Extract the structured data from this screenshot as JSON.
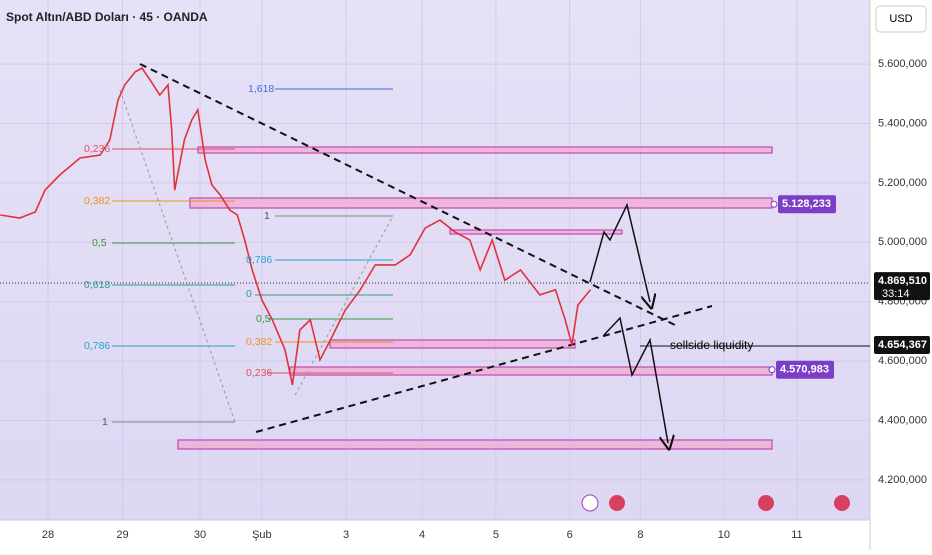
{
  "chart_data": {
    "type": "line",
    "title": "Spot Altın/ABD Doları · 45 · OANDA",
    "currency": "USD",
    "color": "#e0323c",
    "x": [
      -0.64,
      -0.38,
      -0.17,
      -0.04,
      0.16,
      0.43,
      0.7,
      0.83,
      0.94,
      1.03,
      1.17,
      1.26,
      1.37,
      1.5,
      1.61,
      1.66,
      1.7,
      1.83,
      1.93,
      2.01,
      2.11,
      2.2,
      2.31,
      2.44,
      2.54,
      2.64,
      2.74,
      2.87,
      3.01,
      3.18,
      3.28,
      3.38,
      3.52,
      3.65,
      3.79,
      3.99,
      4.19,
      4.39,
      4.66,
      4.86,
      5.06,
      5.26,
      5.46,
      5.66,
      5.8,
      5.96,
      6.13,
      6.34,
      6.6,
      6.81,
      6.94,
      7.03,
      7.11,
      7.28
    ],
    "values": [
      5092000,
      5082000,
      5102000,
      5176000,
      5227000,
      5284000,
      5294000,
      5345000,
      5479000,
      5530000,
      5574000,
      5587000,
      5547000,
      5496000,
      5530000,
      5378000,
      5176000,
      5345000,
      5412000,
      5446000,
      5277000,
      5193000,
      5160000,
      5109000,
      5092000,
      5008000,
      4907000,
      4806000,
      4739000,
      4638000,
      4520000,
      4705000,
      4739000,
      4604000,
      4671000,
      4772000,
      4840000,
      4924000,
      4924000,
      4958000,
      5048000,
      5075000,
      5035000,
      5008000,
      4907000,
      5008000,
      4872000,
      4907000,
      4823000,
      4840000,
      4739000,
      4655000,
      4789000,
      4840000
    ],
    "xlim": [
      -0.644,
      11.03
    ],
    "xticks": [
      {
        "value": 0,
        "label": "28"
      },
      {
        "value": 1.0,
        "label": "29"
      },
      {
        "value": 2.04,
        "label": "30"
      },
      {
        "value": 2.87,
        "label": "Şub"
      },
      {
        "value": 4.0,
        "label": "3"
      },
      {
        "value": 5.02,
        "label": "4"
      },
      {
        "value": 6.01,
        "label": "5"
      },
      {
        "value": 7.0,
        "label": "6"
      },
      {
        "value": 7.95,
        "label": "8"
      },
      {
        "value": 9.07,
        "label": "10"
      },
      {
        "value": 10.05,
        "label": "11"
      }
    ],
    "ylim": [
      4065000,
      5816000
    ],
    "yticks": [
      {
        "value": 4200000,
        "label": "4.200,000"
      },
      {
        "value": 4400000,
        "label": "4.400,000"
      },
      {
        "value": 4600000,
        "label": "4.600,000"
      },
      {
        "value": 4800000,
        "label": "4.800,000"
      },
      {
        "value": 5000000,
        "label": "5.000,000"
      },
      {
        "value": 5200000,
        "label": "5.200,000"
      },
      {
        "value": 5400000,
        "label": "5.400,000"
      },
      {
        "value": 5600000,
        "label": "5.600,000"
      }
    ],
    "price_tags": [
      {
        "value": 4869510,
        "label": "4.869,510",
        "countdown": "33:14"
      },
      {
        "value": 4654367,
        "label": "4.654,367"
      },
      {
        "value": 5128233,
        "label": "5.128,233"
      },
      {
        "value": 4570983,
        "label": "4.570,983"
      }
    ],
    "fib_labels": [
      "1,618",
      "0,236",
      "0,382",
      "0,5",
      "0,618",
      "0,786",
      "1",
      "1",
      "0,786",
      "0",
      "0,5",
      "0,382",
      "0,236"
    ],
    "annotation": "sellside  liquidity"
  }
}
